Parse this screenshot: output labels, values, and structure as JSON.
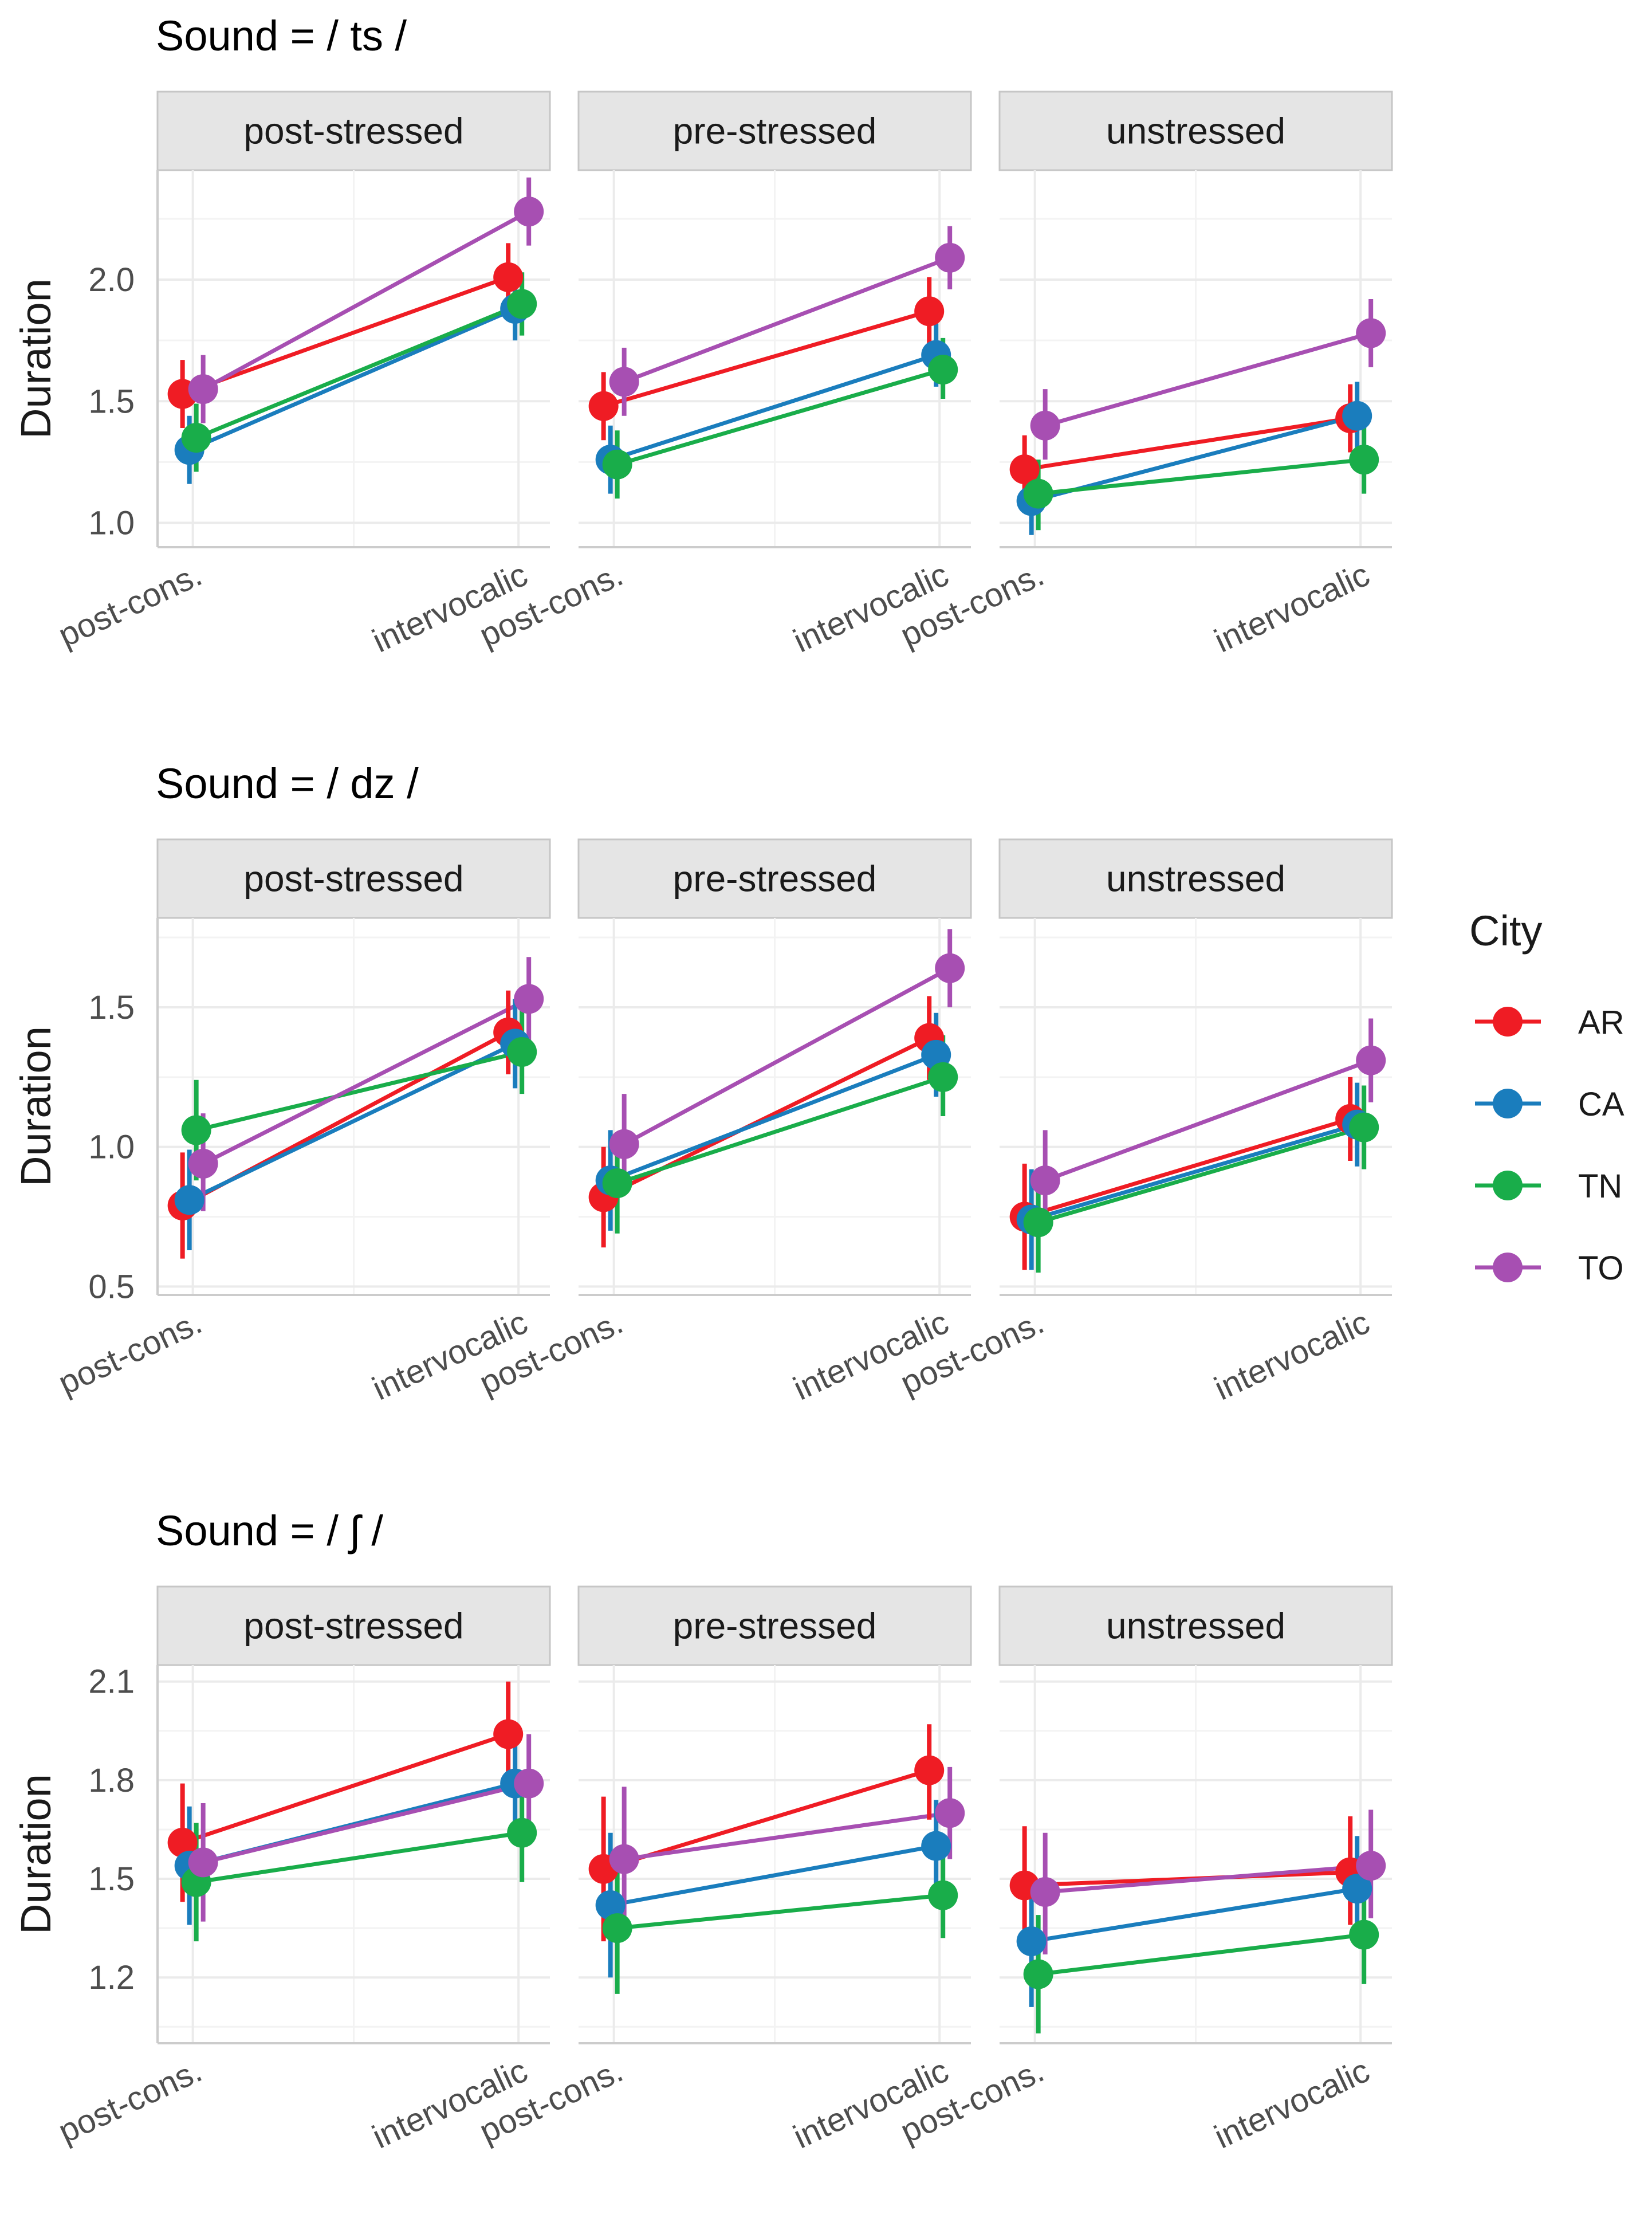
{
  "chart_data": {
    "type": "line",
    "x_categories": [
      "post-cons.",
      "intervocalic"
    ],
    "ylabel": "Duration",
    "facet_labels": [
      "post-stressed",
      "pre-stressed",
      "unstressed"
    ],
    "legend": {
      "title": "City",
      "placement": "right",
      "entries": [
        {
          "name": "AR",
          "color": "#ef1c24"
        },
        {
          "name": "CA",
          "color": "#1a7dbd"
        },
        {
          "name": "TN",
          "color": "#19ad4a"
        },
        {
          "name": "TO",
          "color": "#a74fb2"
        }
      ]
    },
    "rows": [
      {
        "title": "Sound = / ts /",
        "ylim": [
          0.9,
          2.45
        ],
        "yticks": [
          1.0,
          1.5,
          2.0
        ],
        "ytick_labels": [
          "1.0",
          "1.5",
          "2.0"
        ],
        "panels": [
          {
            "facet": "post-stressed",
            "series": [
              {
                "city": "AR",
                "values": [
                  1.53,
                  2.01
                ],
                "lower": [
                  1.39,
                  1.87
                ],
                "upper": [
                  1.67,
                  2.15
                ]
              },
              {
                "city": "CA",
                "values": [
                  1.3,
                  1.88
                ],
                "lower": [
                  1.16,
                  1.75
                ],
                "upper": [
                  1.44,
                  2.01
                ]
              },
              {
                "city": "TN",
                "values": [
                  1.35,
                  1.9
                ],
                "lower": [
                  1.21,
                  1.77
                ],
                "upper": [
                  1.49,
                  2.03
                ]
              },
              {
                "city": "TO",
                "values": [
                  1.55,
                  2.28
                ],
                "lower": [
                  1.41,
                  2.14
                ],
                "upper": [
                  1.69,
                  2.42
                ]
              }
            ]
          },
          {
            "facet": "pre-stressed",
            "series": [
              {
                "city": "AR",
                "values": [
                  1.48,
                  1.87
                ],
                "lower": [
                  1.34,
                  1.73
                ],
                "upper": [
                  1.62,
                  2.01
                ]
              },
              {
                "city": "CA",
                "values": [
                  1.26,
                  1.69
                ],
                "lower": [
                  1.12,
                  1.56
                ],
                "upper": [
                  1.4,
                  1.82
                ]
              },
              {
                "city": "TN",
                "values": [
                  1.24,
                  1.63
                ],
                "lower": [
                  1.1,
                  1.51
                ],
                "upper": [
                  1.38,
                  1.76
                ]
              },
              {
                "city": "TO",
                "values": [
                  1.58,
                  2.09
                ],
                "lower": [
                  1.44,
                  1.96
                ],
                "upper": [
                  1.72,
                  2.22
                ]
              }
            ]
          },
          {
            "facet": "unstressed",
            "series": [
              {
                "city": "AR",
                "values": [
                  1.22,
                  1.43
                ],
                "lower": [
                  1.07,
                  1.29
                ],
                "upper": [
                  1.36,
                  1.57
                ]
              },
              {
                "city": "CA",
                "values": [
                  1.09,
                  1.44
                ],
                "lower": [
                  0.95,
                  1.3
                ],
                "upper": [
                  1.23,
                  1.58
                ]
              },
              {
                "city": "TN",
                "values": [
                  1.12,
                  1.26
                ],
                "lower": [
                  0.97,
                  1.12
                ],
                "upper": [
                  1.26,
                  1.4
                ]
              },
              {
                "city": "TO",
                "values": [
                  1.4,
                  1.78
                ],
                "lower": [
                  1.26,
                  1.64
                ],
                "upper": [
                  1.55,
                  1.92
                ]
              }
            ]
          }
        ]
      },
      {
        "title": "Sound = / dz /",
        "ylim": [
          0.47,
          1.82
        ],
        "yticks": [
          0.5,
          1.0,
          1.5
        ],
        "ytick_labels": [
          "0.5",
          "1.0",
          "1.5"
        ],
        "panels": [
          {
            "facet": "post-stressed",
            "series": [
              {
                "city": "AR",
                "values": [
                  0.79,
                  1.41
                ],
                "lower": [
                  0.6,
                  1.26
                ],
                "upper": [
                  0.98,
                  1.56
                ]
              },
              {
                "city": "CA",
                "values": [
                  0.81,
                  1.37
                ],
                "lower": [
                  0.63,
                  1.21
                ],
                "upper": [
                  0.99,
                  1.53
                ]
              },
              {
                "city": "TN",
                "values": [
                  1.06,
                  1.34
                ],
                "lower": [
                  0.88,
                  1.19
                ],
                "upper": [
                  1.24,
                  1.49
                ]
              },
              {
                "city": "TO",
                "values": [
                  0.94,
                  1.53
                ],
                "lower": [
                  0.77,
                  1.38
                ],
                "upper": [
                  1.12,
                  1.68
                ]
              }
            ]
          },
          {
            "facet": "pre-stressed",
            "series": [
              {
                "city": "AR",
                "values": [
                  0.82,
                  1.39
                ],
                "lower": [
                  0.64,
                  1.24
                ],
                "upper": [
                  1.0,
                  1.54
                ]
              },
              {
                "city": "CA",
                "values": [
                  0.88,
                  1.33
                ],
                "lower": [
                  0.7,
                  1.18
                ],
                "upper": [
                  1.06,
                  1.48
                ]
              },
              {
                "city": "TN",
                "values": [
                  0.87,
                  1.25
                ],
                "lower": [
                  0.69,
                  1.11
                ],
                "upper": [
                  1.05,
                  1.4
                ]
              },
              {
                "city": "TO",
                "values": [
                  1.01,
                  1.64
                ],
                "lower": [
                  0.83,
                  1.5
                ],
                "upper": [
                  1.19,
                  1.78
                ]
              }
            ]
          },
          {
            "facet": "unstressed",
            "series": [
              {
                "city": "AR",
                "values": [
                  0.75,
                  1.1
                ],
                "lower": [
                  0.56,
                  0.95
                ],
                "upper": [
                  0.94,
                  1.25
                ]
              },
              {
                "city": "CA",
                "values": [
                  0.74,
                  1.08
                ],
                "lower": [
                  0.56,
                  0.93
                ],
                "upper": [
                  0.92,
                  1.23
                ]
              },
              {
                "city": "TN",
                "values": [
                  0.73,
                  1.07
                ],
                "lower": [
                  0.55,
                  0.92
                ],
                "upper": [
                  0.91,
                  1.22
                ]
              },
              {
                "city": "TO",
                "values": [
                  0.88,
                  1.31
                ],
                "lower": [
                  0.7,
                  1.16
                ],
                "upper": [
                  1.06,
                  1.46
                ]
              }
            ]
          }
        ]
      },
      {
        "title": "Sound = / ʃ /",
        "ylim": [
          1.0,
          2.15
        ],
        "yticks": [
          1.2,
          1.5,
          1.8,
          2.1
        ],
        "ytick_labels": [
          "1.2",
          "1.5",
          "1.8",
          "2.1"
        ],
        "panels": [
          {
            "facet": "post-stressed",
            "series": [
              {
                "city": "AR",
                "values": [
                  1.61,
                  1.94
                ],
                "lower": [
                  1.43,
                  1.77
                ],
                "upper": [
                  1.79,
                  2.1
                ]
              },
              {
                "city": "CA",
                "values": [
                  1.54,
                  1.79
                ],
                "lower": [
                  1.36,
                  1.63
                ],
                "upper": [
                  1.72,
                  1.94
                ]
              },
              {
                "city": "TN",
                "values": [
                  1.49,
                  1.64
                ],
                "lower": [
                  1.31,
                  1.49
                ],
                "upper": [
                  1.67,
                  1.79
                ]
              },
              {
                "city": "TO",
                "values": [
                  1.55,
                  1.79
                ],
                "lower": [
                  1.37,
                  1.63
                ],
                "upper": [
                  1.73,
                  1.94
                ]
              }
            ]
          },
          {
            "facet": "pre-stressed",
            "series": [
              {
                "city": "AR",
                "values": [
                  1.53,
                  1.83
                ],
                "lower": [
                  1.31,
                  1.68
                ],
                "upper": [
                  1.75,
                  1.97
                ]
              },
              {
                "city": "CA",
                "values": [
                  1.42,
                  1.6
                ],
                "lower": [
                  1.2,
                  1.46
                ],
                "upper": [
                  1.64,
                  1.74
                ]
              },
              {
                "city": "TN",
                "values": [
                  1.35,
                  1.45
                ],
                "lower": [
                  1.15,
                  1.32
                ],
                "upper": [
                  1.57,
                  1.59
                ]
              },
              {
                "city": "TO",
                "values": [
                  1.56,
                  1.7
                ],
                "lower": [
                  1.34,
                  1.56
                ],
                "upper": [
                  1.78,
                  1.84
                ]
              }
            ]
          },
          {
            "facet": "unstressed",
            "series": [
              {
                "city": "AR",
                "values": [
                  1.48,
                  1.52
                ],
                "lower": [
                  1.28,
                  1.36
                ],
                "upper": [
                  1.66,
                  1.69
                ]
              },
              {
                "city": "CA",
                "values": [
                  1.31,
                  1.47
                ],
                "lower": [
                  1.11,
                  1.31
                ],
                "upper": [
                  1.49,
                  1.63
                ]
              },
              {
                "city": "TN",
                "values": [
                  1.21,
                  1.33
                ],
                "lower": [
                  1.03,
                  1.18
                ],
                "upper": [
                  1.39,
                  1.48
                ]
              },
              {
                "city": "TO",
                "values": [
                  1.46,
                  1.54
                ],
                "lower": [
                  1.27,
                  1.38
                ],
                "upper": [
                  1.64,
                  1.71
                ]
              }
            ]
          }
        ]
      }
    ]
  }
}
